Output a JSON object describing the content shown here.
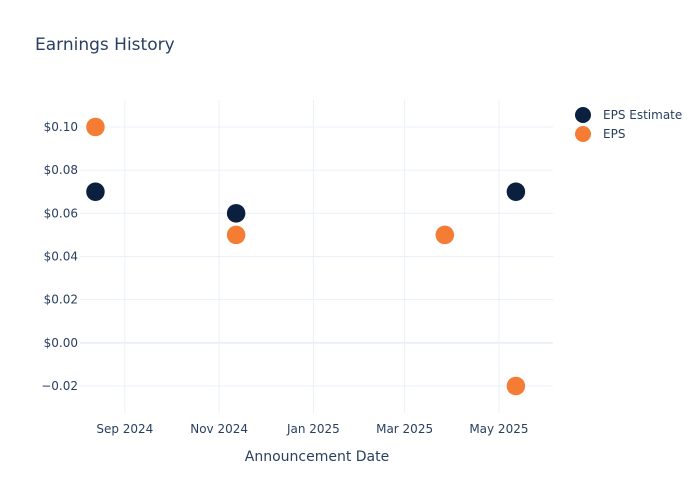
{
  "chart_data": {
    "type": "scatter",
    "title": "Earnings History",
    "xlabel": "Announcement Date",
    "ylabel": "",
    "x_ticks": [
      {
        "label": "Sep 2024",
        "date": "2024-09-01"
      },
      {
        "label": "Nov 2024",
        "date": "2024-11-01"
      },
      {
        "label": "Jan 2025",
        "date": "2025-01-01"
      },
      {
        "label": "Mar 2025",
        "date": "2025-03-01"
      },
      {
        "label": "May 2025",
        "date": "2025-05-01"
      }
    ],
    "y_ticks": [
      {
        "label": "$0.10",
        "value": 0.1
      },
      {
        "label": "$0.08",
        "value": 0.08
      },
      {
        "label": "$0.06",
        "value": 0.06
      },
      {
        "label": "$0.04",
        "value": 0.04
      },
      {
        "label": "$0.02",
        "value": 0.02
      },
      {
        "label": "$0.00",
        "value": 0.0
      },
      {
        "label": "−0.02",
        "value": -0.02
      }
    ],
    "xlim": [
      "2024-08-03",
      "2025-06-05"
    ],
    "ylim": [
      -0.0325,
      0.1125
    ],
    "grid": true,
    "legend_position": "top-right",
    "series": [
      {
        "name": "EPS Estimate",
        "color": "#0b1f3f",
        "points": [
          {
            "x": "2024-08-13",
            "y": 0.07
          },
          {
            "x": "2024-11-12",
            "y": 0.06
          },
          {
            "x": "2025-03-27",
            "y": 0.05
          },
          {
            "x": "2025-05-12",
            "y": 0.07
          }
        ]
      },
      {
        "name": "EPS",
        "color": "#f57c35",
        "points": [
          {
            "x": "2024-08-13",
            "y": 0.1
          },
          {
            "x": "2024-11-12",
            "y": 0.05
          },
          {
            "x": "2025-03-27",
            "y": 0.05
          },
          {
            "x": "2025-05-12",
            "y": -0.02
          }
        ]
      }
    ]
  }
}
